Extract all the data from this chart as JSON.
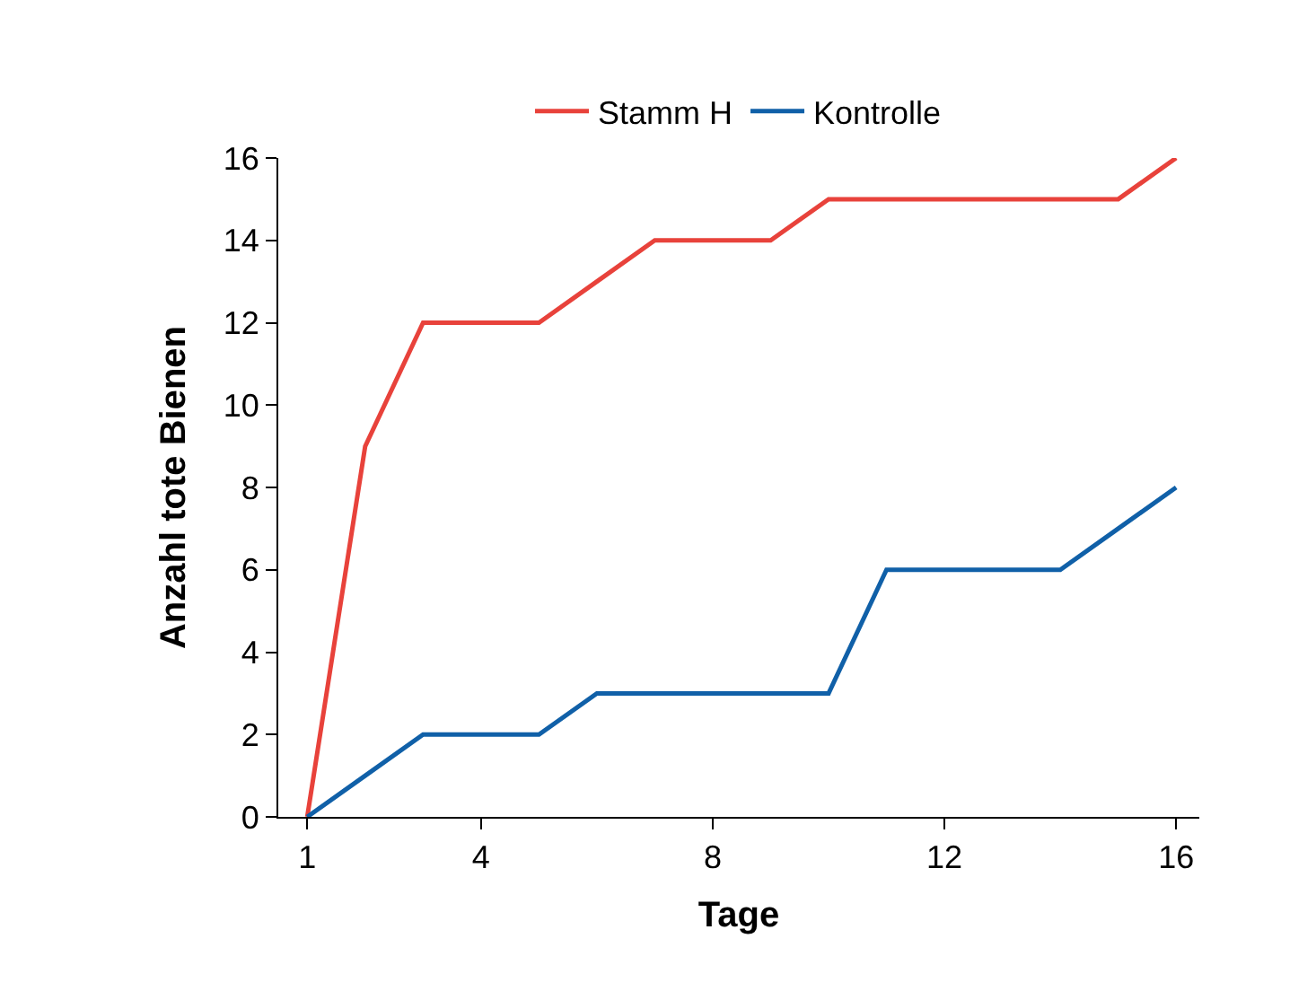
{
  "chart_data": {
    "type": "line",
    "xlabel": "Tage",
    "ylabel": "Anzahl tote Bienen",
    "x": [
      1,
      2,
      3,
      4,
      5,
      6,
      7,
      8,
      9,
      10,
      11,
      12,
      13,
      14,
      15,
      16
    ],
    "series": [
      {
        "name": "Stamm H",
        "color": "#e8423b",
        "values": [
          0,
          9,
          12,
          12,
          12,
          13,
          14,
          14,
          14,
          15,
          15,
          15,
          15,
          15,
          15,
          16
        ]
      },
      {
        "name": "Kontrolle",
        "color": "#1060a8",
        "values": [
          0,
          1,
          2,
          2,
          2,
          3,
          3,
          3,
          3,
          3,
          6,
          6,
          6,
          6,
          7,
          8
        ]
      }
    ],
    "xlim": [
      0.5,
      16.4
    ],
    "xticks": [
      1,
      4,
      8,
      12,
      16
    ],
    "ylim": [
      0,
      16
    ],
    "yticks": [
      0,
      2,
      4,
      6,
      8,
      10,
      12,
      14,
      16
    ],
    "legend": "top",
    "marker": "none",
    "line_style": "solid"
  }
}
